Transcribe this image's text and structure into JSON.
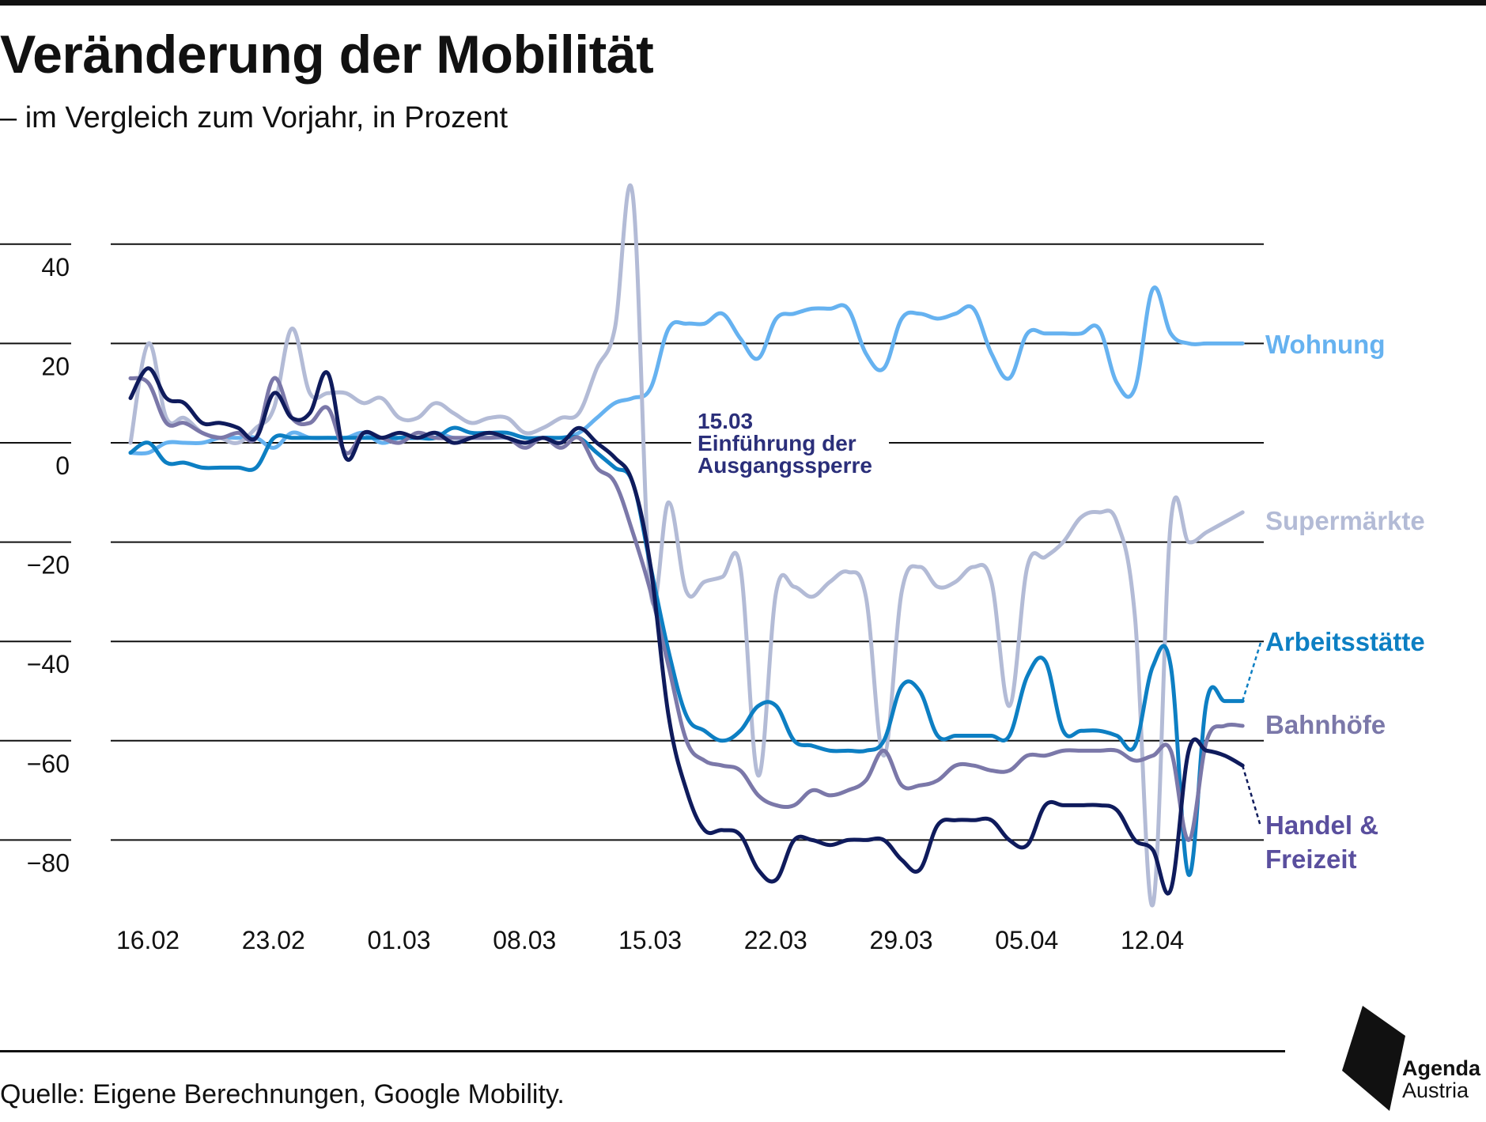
{
  "header": {
    "title": "Veränderung der Mobilität",
    "subtitle": "– im Vergleich zum Vorjahr, in Prozent"
  },
  "footer": {
    "source": "Quelle: Eigene Berechnungen, Google Mobility.",
    "logo_line1": "Agenda",
    "logo_line2": "Austria"
  },
  "chart_data": {
    "type": "line",
    "title": "Veränderung der Mobilität",
    "subtitle": "– im Vergleich zum Vorjahr, in Prozent",
    "xlabel": "",
    "ylabel": "",
    "ylim": [
      -100,
      45
    ],
    "yticks": [
      40,
      20,
      0,
      -20,
      -40,
      -60,
      -80
    ],
    "ytick_labels": [
      "40",
      "20",
      "0",
      "−20",
      "−40",
      "−60",
      "−80"
    ],
    "xticks": [
      0,
      7,
      14,
      21,
      28,
      35,
      42,
      49,
      56
    ],
    "xtick_labels": [
      "16.02",
      "23.02",
      "01.03",
      "08.03",
      "15.03",
      "22.03",
      "29.03",
      "05.04",
      "12.04"
    ],
    "grid": true,
    "legend_placement": "labels at right end of each line",
    "annotation": {
      "x": 28,
      "lines": [
        "15.03",
        "Einführung der",
        "Ausgangssperre"
      ]
    },
    "x": [
      0,
      1,
      2,
      3,
      4,
      5,
      6,
      7,
      8,
      9,
      10,
      11,
      12,
      13,
      14,
      15,
      16,
      17,
      18,
      19,
      20,
      21,
      22,
      23,
      24,
      25,
      26,
      27,
      28,
      29,
      30,
      31,
      32,
      33,
      34,
      35,
      36,
      37,
      38,
      39,
      40,
      41,
      42,
      43,
      44,
      45,
      46,
      47,
      48,
      49,
      50,
      51,
      52,
      53,
      54,
      55,
      56,
      57,
      58,
      59,
      60,
      61,
      62
    ],
    "series": [
      {
        "name": "Wohnung",
        "color": "#66b2f0",
        "values": [
          -2,
          -2,
          0,
          0,
          0,
          1,
          1,
          1,
          -1,
          2,
          1,
          1,
          1,
          2,
          0,
          1,
          1,
          2,
          1,
          1,
          1,
          1,
          0,
          1,
          1,
          2,
          5,
          8,
          9,
          11,
          23,
          24,
          24,
          26,
          21,
          17,
          25,
          26,
          27,
          27,
          27,
          18,
          15,
          25,
          26,
          25,
          26,
          27,
          18,
          13,
          22,
          22,
          22,
          22,
          23,
          12,
          11,
          31,
          22,
          20,
          20,
          20,
          20
        ]
      },
      {
        "name": "Supermärkte",
        "color": "#b3bbd6",
        "values": [
          0,
          20,
          5,
          5,
          2,
          1,
          0,
          3,
          7,
          23,
          10,
          10,
          10,
          8,
          9,
          5,
          5,
          8,
          6,
          4,
          5,
          5,
          2,
          3,
          5,
          6,
          15,
          23,
          50,
          -30,
          -12,
          -30,
          -28,
          -27,
          -25,
          -67,
          -30,
          -29,
          -31,
          -28,
          -26,
          -31,
          -63,
          -30,
          -25,
          -29,
          -28,
          -25,
          -28,
          -53,
          -25,
          -23,
          -20,
          -15,
          -14,
          -16,
          -35,
          -93,
          -16,
          -20,
          -18,
          -16,
          -14
        ]
      },
      {
        "name": "Arbeitsstätte",
        "color": "#0d7fc3",
        "values": [
          -2,
          0,
          -4,
          -4,
          -5,
          -5,
          -5,
          -5,
          1,
          1,
          1,
          1,
          1,
          1,
          1,
          1,
          1,
          1,
          3,
          2,
          2,
          2,
          1,
          1,
          1,
          1,
          -2,
          -5,
          -8,
          -25,
          -42,
          -55,
          -58,
          -60,
          -58,
          -53,
          -53,
          -60,
          -61,
          -62,
          -62,
          -62,
          -60,
          -49,
          -50,
          -59,
          -59,
          -59,
          -59,
          -59,
          -47,
          -44,
          -58,
          -58,
          -58,
          -59,
          -61,
          -45,
          -45,
          -87,
          -52,
          -52,
          -52
        ]
      },
      {
        "name": "Bahnhöfe",
        "color": "#7b78a9",
        "values": [
          13,
          12,
          4,
          4,
          2,
          1,
          2,
          1,
          13,
          5,
          4,
          7,
          -2,
          2,
          1,
          0,
          2,
          1,
          1,
          1,
          1,
          1,
          -1,
          1,
          -1,
          1,
          -5,
          -8,
          -18,
          -30,
          -45,
          -60,
          -64,
          -65,
          -66,
          -71,
          -73,
          -73,
          -70,
          -71,
          -70,
          -68,
          -62,
          -69,
          -69,
          -68,
          -65,
          -65,
          -66,
          -66,
          -63,
          -63,
          -62,
          -62,
          -62,
          -62,
          -64,
          -63,
          -62,
          -80,
          -60,
          -57,
          -57
        ]
      },
      {
        "name": "Handel & Freizeit",
        "color": "#0f1b5c",
        "values": [
          9,
          15,
          9,
          8,
          4,
          4,
          3,
          1,
          10,
          5,
          6,
          14,
          -3,
          2,
          1,
          2,
          1,
          2,
          0,
          1,
          2,
          1,
          0,
          1,
          0,
          3,
          0,
          -3,
          -8,
          -25,
          -55,
          -70,
          -78,
          -78,
          -79,
          -86,
          -88,
          -80,
          -80,
          -81,
          -80,
          -80,
          -80,
          -84,
          -86,
          -77,
          -76,
          -76,
          -76,
          -80,
          -81,
          -73,
          -73,
          -73,
          -73,
          -74,
          -80,
          -82,
          -90,
          -62,
          -62,
          -63,
          -65
        ]
      }
    ]
  }
}
